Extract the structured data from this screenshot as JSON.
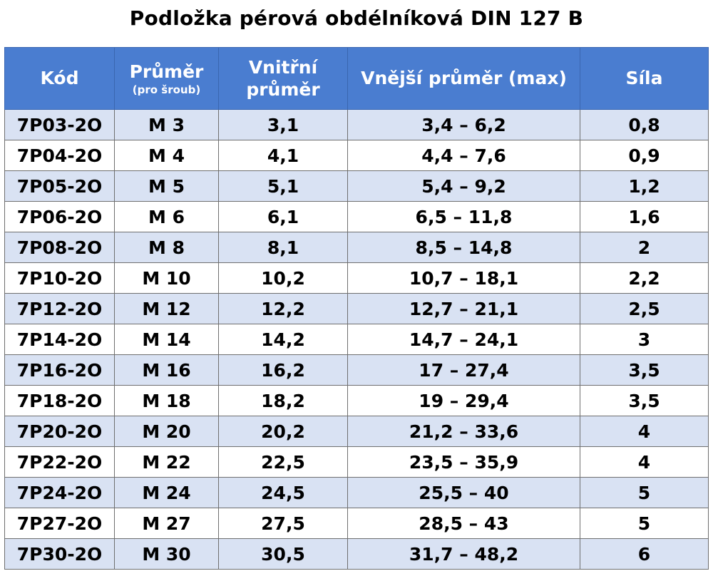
{
  "title": "Podložka pérová obdélníková DIN 127 B",
  "colors": {
    "header_bg": "#4a7dd0",
    "header_text": "#ffffff",
    "row_alt_bg": "#d9e2f3",
    "row_bg": "#ffffff"
  },
  "header": {
    "kod": "Kód",
    "prumer": "Průměr",
    "prumer_sub": "(pro šroub)",
    "vnitrni_line1": "Vnitřní",
    "vnitrni_line2": "průměr",
    "vnejsi": "Vnější průměr (max)",
    "sila": "Síla"
  },
  "rows": [
    {
      "kod": "7P03-2O",
      "prumer": "M 3",
      "vnitrni": "3,1",
      "vnejsi": "3,4 – 6,2",
      "sila": "0,8"
    },
    {
      "kod": "7P04-2O",
      "prumer": "M 4",
      "vnitrni": "4,1",
      "vnejsi": "4,4 – 7,6",
      "sila": "0,9"
    },
    {
      "kod": "7P05-2O",
      "prumer": "M 5",
      "vnitrni": "5,1",
      "vnejsi": "5,4 – 9,2",
      "sila": "1,2"
    },
    {
      "kod": "7P06-2O",
      "prumer": "M 6",
      "vnitrni": "6,1",
      "vnejsi": "6,5 – 11,8",
      "sila": "1,6"
    },
    {
      "kod": "7P08-2O",
      "prumer": "M 8",
      "vnitrni": "8,1",
      "vnejsi": "8,5 – 14,8",
      "sila": "2"
    },
    {
      "kod": "7P10-2O",
      "prumer": "M 10",
      "vnitrni": "10,2",
      "vnejsi": "10,7 – 18,1",
      "sila": "2,2"
    },
    {
      "kod": "7P12-2O",
      "prumer": "M 12",
      "vnitrni": "12,2",
      "vnejsi": "12,7 – 21,1",
      "sila": "2,5"
    },
    {
      "kod": "7P14-2O",
      "prumer": "M 14",
      "vnitrni": "14,2",
      "vnejsi": "14,7 – 24,1",
      "sila": "3"
    },
    {
      "kod": "7P16-2O",
      "prumer": "M 16",
      "vnitrni": "16,2",
      "vnejsi": "17 – 27,4",
      "sila": "3,5"
    },
    {
      "kod": "7P18-2O",
      "prumer": "M 18",
      "vnitrni": "18,2",
      "vnejsi": "19 – 29,4",
      "sila": "3,5"
    },
    {
      "kod": "7P20-2O",
      "prumer": "M 20",
      "vnitrni": "20,2",
      "vnejsi": "21,2 – 33,6",
      "sila": "4"
    },
    {
      "kod": "7P22-2O",
      "prumer": "M 22",
      "vnitrni": "22,5",
      "vnejsi": "23,5 – 35,9",
      "sila": "4"
    },
    {
      "kod": "7P24-2O",
      "prumer": "M 24",
      "vnitrni": "24,5",
      "vnejsi": "25,5 – 40",
      "sila": "5"
    },
    {
      "kod": "7P27-2O",
      "prumer": "M 27",
      "vnitrni": "27,5",
      "vnejsi": "28,5 – 43",
      "sila": "5"
    },
    {
      "kod": "7P30-2O",
      "prumer": "M 30",
      "vnitrni": "30,5",
      "vnejsi": "31,7 – 48,2",
      "sila": "6"
    }
  ]
}
